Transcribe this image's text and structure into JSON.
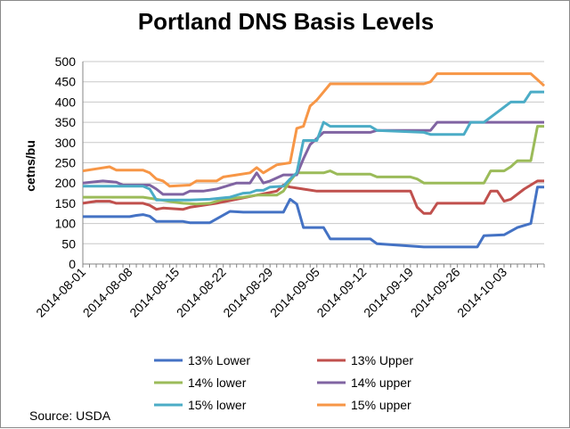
{
  "chart_data": {
    "type": "line",
    "title": "Portland DNS Basis Levels",
    "xlabel": "",
    "ylabel": "cetns/bu",
    "ylim": [
      0,
      500
    ],
    "yticks": [
      0,
      50,
      100,
      150,
      200,
      250,
      300,
      350,
      400,
      450,
      500
    ],
    "x_start": "2014-08-01",
    "x_end": "2014-10-09",
    "x_ticks": [
      "2014-08-01",
      "2014-08-08",
      "2014-08-15",
      "2014-08-22",
      "2014-08-29",
      "2014-09-05",
      "2014-09-12",
      "2014-09-19",
      "2014-09-26",
      "2014-10-03"
    ],
    "legend_position": "bottom",
    "source": "Source: USDA",
    "series": [
      {
        "name": "13% Lower",
        "color": "#4472C4",
        "points": [
          [
            0,
            117
          ],
          [
            7,
            117
          ],
          [
            8,
            120
          ],
          [
            9,
            122
          ],
          [
            10,
            118
          ],
          [
            11,
            105
          ],
          [
            15,
            105
          ],
          [
            16,
            102
          ],
          [
            19,
            102
          ],
          [
            22,
            130
          ],
          [
            24,
            128
          ],
          [
            28,
            128
          ],
          [
            29,
            128
          ],
          [
            30,
            128
          ],
          [
            31,
            160
          ],
          [
            32,
            148
          ],
          [
            33,
            90
          ],
          [
            36,
            90
          ],
          [
            37,
            62
          ],
          [
            43,
            62
          ],
          [
            44,
            50
          ],
          [
            51,
            42
          ],
          [
            59,
            42
          ],
          [
            60,
            70
          ],
          [
            63,
            72
          ],
          [
            65,
            90
          ],
          [
            67,
            100
          ],
          [
            68,
            190
          ],
          [
            69,
            190
          ]
        ]
      },
      {
        "name": "13% Upper",
        "color": "#C0504D",
        "points": [
          [
            0,
            150
          ],
          [
            2,
            155
          ],
          [
            4,
            155
          ],
          [
            5,
            150
          ],
          [
            9,
            150
          ],
          [
            10,
            145
          ],
          [
            11,
            135
          ],
          [
            12,
            138
          ],
          [
            15,
            135
          ],
          [
            16,
            140
          ],
          [
            20,
            150
          ],
          [
            23,
            160
          ],
          [
            26,
            170
          ],
          [
            29,
            180
          ],
          [
            30,
            195
          ],
          [
            31,
            190
          ],
          [
            33,
            185
          ],
          [
            35,
            180
          ],
          [
            49,
            180
          ],
          [
            50,
            140
          ],
          [
            51,
            125
          ],
          [
            52,
            125
          ],
          [
            53,
            150
          ],
          [
            60,
            150
          ],
          [
            61,
            180
          ],
          [
            62,
            180
          ],
          [
            63,
            155
          ],
          [
            64,
            160
          ],
          [
            66,
            185
          ],
          [
            68,
            205
          ],
          [
            69,
            205
          ]
        ]
      },
      {
        "name": "14% lower",
        "color": "#9BBB59",
        "points": [
          [
            0,
            165
          ],
          [
            9,
            165
          ],
          [
            11,
            160
          ],
          [
            14,
            152
          ],
          [
            15,
            150
          ],
          [
            17,
            148
          ],
          [
            19,
            150
          ],
          [
            21,
            160
          ],
          [
            24,
            165
          ],
          [
            26,
            170
          ],
          [
            29,
            170
          ],
          [
            30,
            180
          ],
          [
            31,
            205
          ],
          [
            32,
            225
          ],
          [
            36,
            225
          ],
          [
            37,
            230
          ],
          [
            38,
            222
          ],
          [
            43,
            222
          ],
          [
            44,
            215
          ],
          [
            49,
            215
          ],
          [
            50,
            210
          ],
          [
            51,
            200
          ],
          [
            52,
            200
          ],
          [
            60,
            200
          ],
          [
            61,
            230
          ],
          [
            63,
            230
          ],
          [
            64,
            240
          ],
          [
            65,
            255
          ],
          [
            67,
            255
          ],
          [
            68,
            340
          ],
          [
            69,
            340
          ]
        ]
      },
      {
        "name": "14% upper",
        "color": "#8064A2",
        "points": [
          [
            0,
            200
          ],
          [
            3,
            205
          ],
          [
            5,
            202
          ],
          [
            6,
            195
          ],
          [
            10,
            195
          ],
          [
            11,
            185
          ],
          [
            12,
            172
          ],
          [
            15,
            172
          ],
          [
            16,
            180
          ],
          [
            18,
            180
          ],
          [
            20,
            185
          ],
          [
            23,
            200
          ],
          [
            25,
            200
          ],
          [
            26,
            225
          ],
          [
            27,
            200
          ],
          [
            28,
            205
          ],
          [
            30,
            220
          ],
          [
            32,
            220
          ],
          [
            33,
            260
          ],
          [
            34,
            295
          ],
          [
            36,
            325
          ],
          [
            43,
            325
          ],
          [
            44,
            330
          ],
          [
            51,
            330
          ],
          [
            52,
            330
          ],
          [
            53,
            350
          ],
          [
            58,
            350
          ],
          [
            59,
            350
          ],
          [
            69,
            350
          ]
        ]
      },
      {
        "name": "15% lower",
        "color": "#4BACC6",
        "points": [
          [
            0,
            192
          ],
          [
            9,
            192
          ],
          [
            10,
            185
          ],
          [
            11,
            158
          ],
          [
            12,
            158
          ],
          [
            15,
            158
          ],
          [
            16,
            158
          ],
          [
            19,
            160
          ],
          [
            22,
            165
          ],
          [
            24,
            175
          ],
          [
            25,
            176
          ],
          [
            26,
            182
          ],
          [
            27,
            182
          ],
          [
            28,
            190
          ],
          [
            30,
            192
          ],
          [
            31,
            210
          ],
          [
            32,
            225
          ],
          [
            33,
            305
          ],
          [
            35,
            305
          ],
          [
            36,
            350
          ],
          [
            37,
            340
          ],
          [
            43,
            340
          ],
          [
            44,
            330
          ],
          [
            51,
            325
          ],
          [
            52,
            320
          ],
          [
            57,
            320
          ],
          [
            58,
            350
          ],
          [
            60,
            350
          ],
          [
            62,
            375
          ],
          [
            64,
            400
          ],
          [
            66,
            400
          ],
          [
            67,
            425
          ],
          [
            69,
            425
          ]
        ]
      },
      {
        "name": "15% upper",
        "color": "#F79646",
        "points": [
          [
            0,
            230
          ],
          [
            2,
            235
          ],
          [
            4,
            240
          ],
          [
            5,
            232
          ],
          [
            9,
            232
          ],
          [
            10,
            225
          ],
          [
            11,
            210
          ],
          [
            12,
            205
          ],
          [
            13,
            192
          ],
          [
            16,
            195
          ],
          [
            17,
            205
          ],
          [
            20,
            205
          ],
          [
            21,
            215
          ],
          [
            23,
            220
          ],
          [
            25,
            225
          ],
          [
            26,
            238
          ],
          [
            27,
            225
          ],
          [
            29,
            245
          ],
          [
            31,
            250
          ],
          [
            32,
            335
          ],
          [
            33,
            340
          ],
          [
            34,
            390
          ],
          [
            35,
            405
          ],
          [
            36,
            425
          ],
          [
            37,
            445
          ],
          [
            51,
            445
          ],
          [
            52,
            450
          ],
          [
            53,
            470
          ],
          [
            67,
            470
          ],
          [
            68,
            455
          ],
          [
            69,
            440
          ]
        ]
      }
    ]
  }
}
